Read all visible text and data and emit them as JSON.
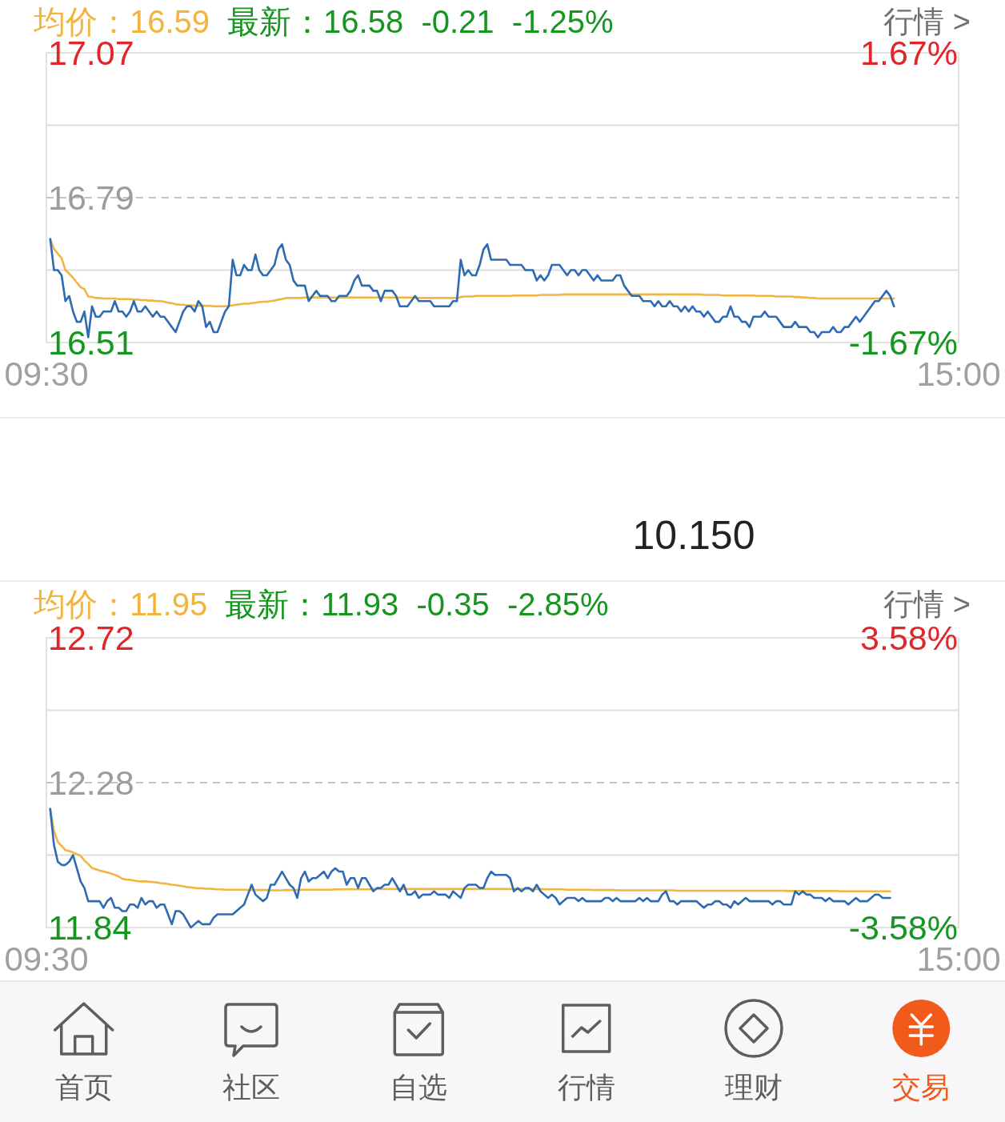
{
  "chart_data": [
    {
      "type": "line",
      "title": "均价：16.59",
      "subtitle": "最新：16.58  -0.21  -1.25%",
      "annotations": [
        "行情 >"
      ],
      "categories": [
        "09:30",
        null,
        null,
        null,
        null,
        null,
        null,
        null,
        null,
        null,
        null,
        null,
        null,
        null,
        null,
        null,
        null,
        null,
        null,
        null,
        null,
        null,
        null,
        null,
        null,
        null,
        null,
        null,
        null,
        null,
        null,
        null,
        null,
        null,
        null,
        null,
        null,
        null,
        null,
        null,
        null,
        null,
        null,
        null,
        null,
        null,
        null,
        null,
        null,
        null,
        null,
        null,
        null,
        null,
        null,
        null,
        null,
        null,
        null,
        null,
        null,
        null,
        null,
        null,
        null,
        null,
        null,
        null,
        null,
        null,
        null,
        null,
        null,
        null,
        null,
        null,
        null,
        null,
        null,
        null,
        null,
        null,
        null,
        null,
        null,
        null,
        null,
        null,
        null,
        null,
        null,
        null,
        null,
        null,
        null,
        null,
        null,
        null,
        null,
        null,
        null,
        null,
        null,
        null,
        null,
        null,
        null,
        null,
        null,
        null,
        null,
        null,
        null,
        null,
        null,
        null,
        null,
        null,
        null,
        null,
        null,
        null,
        null,
        null,
        null,
        null,
        null,
        null,
        null,
        null,
        null,
        null,
        null,
        null,
        null,
        null,
        null,
        null,
        null,
        null,
        null,
        null,
        null,
        null,
        null,
        null,
        null,
        null,
        null,
        null,
        null,
        null,
        null,
        null,
        null,
        null,
        null,
        null,
        null,
        null,
        null,
        null,
        null,
        null,
        null,
        null,
        null,
        null,
        null,
        null,
        null,
        null,
        null,
        null,
        null,
        null,
        null,
        null,
        null,
        null,
        null,
        null,
        null,
        null,
        null,
        null,
        null,
        null,
        null,
        null,
        null,
        null,
        null,
        null,
        null,
        null,
        null,
        null,
        null,
        null,
        null,
        null,
        null,
        null,
        null,
        null,
        null,
        null,
        null,
        null,
        null,
        null,
        null,
        null,
        null,
        null,
        null,
        null,
        null,
        null,
        null,
        null,
        null,
        null,
        null,
        null,
        null,
        null,
        null,
        null,
        null,
        null,
        null,
        null,
        null,
        null,
        null,
        null,
        null,
        null,
        "15:00"
      ],
      "ylim": [
        16.51,
        17.07
      ],
      "yticks": [
        17.07,
        {
          "value": 16.93,
          "label": null
        },
        16.79,
        {
          "value": 16.65,
          "label": null
        },
        16.51
      ],
      "y2lim": [
        -1.67,
        1.67
      ],
      "y2ticks": [
        {
          "value": 1.67,
          "label": "1.67%"
        },
        {
          "value": -1.67,
          "label": "-1.67%"
        }
      ],
      "grid": "y",
      "ref_lines": [
        {
          "axis": "y",
          "value": 16.79,
          "color": "#c4c4c4",
          "line_style": "dashed"
        }
      ],
      "series": [
        {
          "color": "#f2b540",
          "values": [
            null,
            16.71,
            16.691,
            16.682,
            16.673,
            16.65,
            16.643,
            16.635,
            16.626,
            16.617,
            16.613,
            16.599,
            16.598,
            16.596,
            16.596,
            16.595,
            16.595,
            16.595,
            16.595,
            16.594,
            16.594,
            16.594,
            16.594,
            16.593,
            16.593,
            16.592,
            16.592,
            16.591,
            16.591,
            16.59,
            16.59,
            16.589,
            16.587,
            16.586,
            16.584,
            16.583,
            16.583,
            16.582,
            16.582,
            16.581,
            16.581,
            16.581,
            16.581,
            16.581,
            16.58,
            16.58,
            16.58,
            16.58,
            16.581,
            16.582,
            16.583,
            16.584,
            16.585,
            16.585,
            16.586,
            16.587,
            16.588,
            16.589,
            16.589,
            16.59,
            16.591,
            16.593,
            16.594,
            16.596,
            16.596,
            16.596,
            16.596,
            16.596,
            16.597,
            16.597,
            16.597,
            16.597,
            16.597,
            16.597,
            16.597,
            16.597,
            16.597,
            16.597,
            16.597,
            16.597,
            16.597,
            16.597,
            16.597,
            16.597,
            16.597,
            16.597,
            16.597,
            16.597,
            16.597,
            16.597,
            16.597,
            16.597,
            16.597,
            16.597,
            16.597,
            16.597,
            16.597,
            16.597,
            16.596,
            16.596,
            16.596,
            16.596,
            16.596,
            16.596,
            16.596,
            16.596,
            16.596,
            16.596,
            16.596,
            16.598,
            16.599,
            16.599,
            16.599,
            16.6,
            16.6,
            16.6,
            16.6,
            16.6,
            16.6,
            16.6,
            16.6,
            16.6,
            16.6,
            16.601,
            16.601,
            16.601,
            16.601,
            16.601,
            16.601,
            16.601,
            16.602,
            16.602,
            16.602,
            16.602,
            16.602,
            16.602,
            16.603,
            16.603,
            16.603,
            16.603,
            16.603,
            16.603,
            16.603,
            16.603,
            16.603,
            16.603,
            16.603,
            16.603,
            16.603,
            16.603,
            16.603,
            16.603,
            16.603,
            16.603,
            16.603,
            16.603,
            16.603,
            16.603,
            16.603,
            16.603,
            16.603,
            16.603,
            16.603,
            16.603,
            16.603,
            16.603,
            16.603,
            16.603,
            16.603,
            16.603,
            16.603,
            16.603,
            16.603,
            16.602,
            16.602,
            16.602,
            16.602,
            16.602,
            16.601,
            16.601,
            16.601,
            16.601,
            16.601,
            16.601,
            16.601,
            16.601,
            16.601,
            16.6,
            16.6,
            16.6,
            16.6,
            16.6,
            16.599,
            16.599,
            16.599,
            16.599,
            16.599,
            16.598,
            16.598,
            16.597,
            16.597,
            16.596,
            16.596,
            16.595,
            16.595,
            16.595,
            16.595,
            16.595,
            16.595,
            16.595,
            16.595,
            16.595,
            16.595,
            16.595,
            16.595,
            16.595,
            16.595,
            16.595,
            16.595,
            16.595,
            16.595,
            16.595,
            16.595,
            16.595,
            null,
            null,
            null,
            null,
            null,
            null,
            null,
            null,
            null,
            null,
            null,
            null,
            null,
            null,
            null,
            null,
            null
          ]
        },
        {
          "color": "#2e6bb3",
          "values": [
            null,
            16.71,
            16.65,
            16.65,
            16.64,
            16.59,
            16.6,
            16.57,
            16.55,
            16.55,
            16.57,
            16.52,
            16.58,
            16.56,
            16.56,
            16.57,
            16.57,
            16.57,
            16.59,
            16.57,
            16.57,
            16.56,
            16.57,
            16.59,
            16.57,
            16.57,
            16.58,
            16.57,
            16.56,
            16.57,
            16.56,
            16.56,
            16.55,
            16.54,
            16.53,
            16.55,
            16.57,
            16.58,
            16.58,
            16.57,
            16.59,
            16.58,
            16.54,
            16.55,
            16.53,
            16.53,
            16.55,
            16.57,
            16.58,
            16.67,
            16.64,
            16.64,
            16.66,
            16.65,
            16.65,
            16.68,
            16.65,
            16.64,
            16.64,
            16.65,
            16.66,
            16.69,
            16.7,
            16.67,
            16.66,
            16.63,
            16.62,
            16.62,
            16.62,
            16.59,
            16.6,
            16.61,
            16.6,
            16.6,
            16.6,
            16.59,
            16.59,
            16.6,
            16.6,
            16.6,
            16.61,
            16.63,
            16.64,
            16.62,
            16.62,
            16.62,
            16.61,
            16.61,
            16.59,
            16.61,
            16.61,
            16.61,
            16.6,
            16.58,
            16.58,
            16.58,
            16.59,
            16.6,
            16.59,
            16.59,
            16.59,
            16.59,
            16.58,
            16.58,
            16.58,
            16.58,
            16.58,
            16.59,
            16.59,
            16.67,
            16.64,
            16.65,
            16.64,
            16.64,
            16.66,
            16.69,
            16.7,
            16.67,
            16.67,
            16.67,
            16.67,
            16.67,
            16.66,
            16.66,
            16.66,
            16.66,
            16.65,
            16.65,
            16.65,
            16.63,
            16.64,
            16.63,
            16.64,
            16.66,
            16.66,
            16.66,
            16.65,
            16.64,
            16.65,
            16.65,
            16.64,
            16.65,
            16.65,
            16.64,
            16.63,
            16.64,
            16.63,
            16.63,
            16.63,
            16.63,
            16.64,
            16.64,
            16.62,
            16.61,
            16.6,
            16.6,
            16.6,
            16.59,
            16.59,
            16.59,
            16.58,
            16.59,
            16.58,
            16.58,
            16.59,
            16.58,
            16.58,
            16.57,
            16.58,
            16.57,
            16.58,
            16.57,
            16.57,
            16.56,
            16.57,
            16.56,
            16.55,
            16.55,
            16.56,
            16.56,
            16.58,
            16.56,
            16.56,
            16.55,
            16.55,
            16.54,
            16.56,
            16.56,
            16.56,
            16.57,
            16.56,
            16.56,
            16.56,
            16.55,
            16.54,
            16.54,
            16.54,
            16.55,
            16.54,
            16.54,
            16.54,
            16.53,
            16.53,
            16.52,
            16.53,
            16.53,
            16.53,
            16.54,
            16.53,
            16.53,
            16.54,
            16.54,
            16.55,
            16.56,
            16.55,
            16.56,
            16.57,
            16.58,
            16.59,
            16.59,
            16.6,
            16.61,
            16.6,
            16.58,
            null,
            null,
            null,
            null,
            null,
            null,
            null,
            null,
            null,
            null,
            null,
            null,
            null,
            null,
            null,
            null,
            null
          ]
        }
      ]
    },
    {
      "type": "other",
      "annotations": [
        "10.150"
      ]
    },
    {
      "type": "line",
      "title": "均价：11.95",
      "subtitle": "最新：11.93  -0.35  -2.85%",
      "annotations": [
        "行情 >"
      ],
      "categories": [
        "09:30",
        null,
        null,
        null,
        null,
        null,
        null,
        null,
        null,
        null,
        null,
        null,
        null,
        null,
        null,
        null,
        null,
        null,
        null,
        null,
        null,
        null,
        null,
        null,
        null,
        null,
        null,
        null,
        null,
        null,
        null,
        null,
        null,
        null,
        null,
        null,
        null,
        null,
        null,
        null,
        null,
        null,
        null,
        null,
        null,
        null,
        null,
        null,
        null,
        null,
        null,
        null,
        null,
        null,
        null,
        null,
        null,
        null,
        null,
        null,
        null,
        null,
        null,
        null,
        null,
        null,
        null,
        null,
        null,
        null,
        null,
        null,
        null,
        null,
        null,
        null,
        null,
        null,
        null,
        null,
        null,
        null,
        null,
        null,
        null,
        null,
        null,
        null,
        null,
        null,
        null,
        null,
        null,
        null,
        null,
        null,
        null,
        null,
        null,
        null,
        null,
        null,
        null,
        null,
        null,
        null,
        null,
        null,
        null,
        null,
        null,
        null,
        null,
        null,
        null,
        null,
        null,
        null,
        null,
        null,
        null,
        null,
        null,
        null,
        null,
        null,
        null,
        null,
        null,
        null,
        null,
        null,
        null,
        null,
        null,
        null,
        null,
        null,
        null,
        null,
        null,
        null,
        null,
        null,
        null,
        null,
        null,
        null,
        null,
        null,
        null,
        null,
        null,
        null,
        null,
        null,
        null,
        null,
        null,
        null,
        null,
        null,
        null,
        null,
        null,
        null,
        null,
        null,
        null,
        null,
        null,
        null,
        null,
        null,
        null,
        null,
        null,
        null,
        null,
        null,
        null,
        null,
        null,
        null,
        null,
        null,
        null,
        null,
        null,
        null,
        null,
        null,
        null,
        null,
        null,
        null,
        null,
        null,
        null,
        null,
        null,
        null,
        null,
        null,
        null,
        null,
        null,
        null,
        null,
        null,
        null,
        null,
        null,
        null,
        null,
        null,
        null,
        null,
        null,
        null,
        null,
        null,
        null,
        null,
        null,
        null,
        null,
        null,
        null,
        null,
        null,
        null,
        null,
        null,
        null,
        null,
        null,
        null,
        null,
        null,
        "15:00"
      ],
      "ylim": [
        11.84,
        12.72
      ],
      "yticks": [
        12.72,
        {
          "value": 12.5,
          "label": null
        },
        12.28,
        {
          "value": 12.06,
          "label": null
        },
        11.84
      ],
      "y2lim": [
        -3.58,
        3.58
      ],
      "y2ticks": [
        {
          "value": 3.58,
          "label": "3.58%"
        },
        {
          "value": -3.58,
          "label": "-3.58%"
        }
      ],
      "grid": "y",
      "ref_lines": [
        {
          "axis": "y",
          "value": 12.28,
          "color": "#c4c4c4",
          "line_style": "dashed"
        }
      ],
      "series": [
        {
          "color": "#f2b540",
          "values": [
            null,
            12.2,
            12.133,
            12.1,
            12.088,
            12.075,
            12.072,
            12.068,
            12.063,
            12.058,
            12.044,
            12.033,
            12.021,
            12.017,
            12.013,
            12.01,
            12.007,
            12.004,
            12.0,
            11.995,
            11.988,
            11.986,
            11.985,
            11.983,
            11.981,
            11.98,
            11.98,
            11.979,
            11.978,
            11.977,
            11.975,
            11.974,
            11.972,
            11.97,
            11.969,
            11.967,
            11.965,
            11.963,
            11.962,
            11.96,
            11.959,
            11.959,
            11.958,
            11.958,
            11.957,
            11.956,
            11.956,
            11.955,
            11.955,
            11.955,
            11.955,
            11.955,
            11.955,
            11.954,
            11.954,
            11.954,
            11.954,
            11.954,
            11.954,
            11.953,
            11.953,
            11.953,
            11.953,
            11.954,
            11.954,
            11.954,
            11.954,
            11.955,
            11.955,
            11.955,
            11.955,
            11.955,
            11.955,
            11.955,
            11.955,
            11.955,
            11.956,
            11.956,
            11.956,
            11.956,
            11.956,
            11.956,
            11.956,
            11.956,
            11.956,
            11.956,
            11.957,
            11.957,
            11.957,
            11.957,
            11.957,
            11.957,
            11.957,
            11.957,
            11.957,
            11.957,
            11.957,
            11.957,
            11.957,
            11.957,
            11.957,
            11.957,
            11.957,
            11.957,
            11.957,
            11.957,
            11.957,
            11.957,
            11.957,
            11.957,
            11.957,
            11.957,
            11.957,
            11.957,
            11.957,
            11.957,
            11.957,
            11.957,
            11.957,
            11.957,
            11.957,
            11.957,
            11.957,
            11.957,
            11.957,
            11.957,
            11.957,
            11.957,
            11.957,
            11.957,
            11.957,
            11.956,
            11.956,
            11.956,
            11.956,
            11.956,
            11.956,
            11.955,
            11.955,
            11.955,
            11.955,
            11.955,
            11.955,
            11.955,
            11.954,
            11.954,
            11.954,
            11.954,
            11.954,
            11.954,
            11.953,
            11.953,
            11.953,
            11.953,
            11.953,
            11.953,
            11.953,
            11.953,
            11.953,
            11.953,
            11.953,
            11.953,
            11.953,
            11.953,
            11.953,
            11.953,
            11.952,
            11.952,
            11.952,
            11.952,
            11.952,
            11.952,
            11.952,
            11.952,
            11.952,
            11.952,
            11.952,
            11.952,
            11.952,
            11.952,
            11.952,
            11.952,
            11.952,
            11.952,
            11.952,
            11.952,
            11.952,
            11.952,
            11.952,
            11.952,
            11.952,
            11.952,
            11.952,
            11.952,
            11.952,
            11.951,
            11.951,
            11.951,
            11.951,
            11.951,
            11.951,
            11.951,
            11.951,
            11.951,
            11.951,
            11.951,
            11.951,
            11.951,
            11.951,
            11.95,
            11.95,
            11.95,
            11.95,
            11.95,
            11.95,
            11.95,
            11.95,
            11.95,
            11.95,
            11.95,
            11.95,
            11.95,
            11.95,
            null,
            null,
            null,
            null,
            null,
            null,
            null,
            null,
            null,
            null,
            null,
            null,
            null,
            null,
            null,
            null,
            null,
            null
          ]
        },
        {
          "color": "#2e6bb3",
          "values": [
            null,
            12.2,
            12.09,
            12.04,
            12.03,
            12.03,
            12.04,
            12.06,
            12.02,
            11.98,
            11.96,
            11.92,
            11.92,
            11.92,
            11.92,
            11.9,
            11.92,
            11.93,
            11.9,
            11.9,
            11.89,
            11.89,
            11.91,
            11.91,
            11.9,
            11.93,
            11.91,
            11.92,
            11.92,
            11.9,
            11.91,
            11.91,
            11.88,
            11.85,
            11.89,
            11.89,
            11.88,
            11.86,
            11.84,
            11.85,
            11.86,
            11.85,
            11.85,
            11.85,
            11.87,
            11.88,
            11.88,
            11.88,
            11.88,
            11.88,
            11.89,
            11.9,
            11.91,
            11.94,
            11.97,
            11.94,
            11.93,
            11.92,
            11.93,
            11.97,
            11.97,
            11.99,
            12.01,
            11.99,
            11.97,
            11.96,
            11.93,
            11.99,
            12.01,
            11.98,
            11.99,
            11.99,
            12.0,
            12.01,
            11.99,
            12.01,
            12.02,
            12.01,
            12.01,
            11.97,
            11.99,
            11.99,
            11.96,
            11.99,
            11.99,
            11.97,
            11.95,
            11.96,
            11.96,
            11.97,
            11.97,
            11.99,
            11.97,
            11.95,
            11.97,
            11.94,
            11.94,
            11.95,
            11.93,
            11.94,
            11.94,
            11.94,
            11.95,
            11.94,
            11.94,
            11.94,
            11.93,
            11.95,
            11.94,
            11.93,
            11.96,
            11.97,
            11.97,
            11.97,
            11.96,
            11.96,
            11.99,
            12.01,
            12.0,
            12.0,
            12.0,
            12.0,
            11.99,
            11.95,
            11.96,
            11.95,
            11.96,
            11.96,
            11.95,
            11.97,
            11.95,
            11.94,
            11.93,
            11.94,
            11.93,
            11.91,
            11.92,
            11.93,
            11.93,
            11.93,
            11.92,
            11.93,
            11.92,
            11.92,
            11.92,
            11.92,
            11.92,
            11.93,
            11.93,
            11.92,
            11.93,
            11.92,
            11.92,
            11.92,
            11.92,
            11.92,
            11.93,
            11.92,
            11.93,
            11.92,
            11.92,
            11.92,
            11.94,
            11.95,
            11.92,
            11.92,
            11.91,
            11.92,
            11.92,
            11.92,
            11.92,
            11.92,
            11.91,
            11.9,
            11.91,
            11.91,
            11.92,
            11.92,
            11.91,
            11.91,
            11.9,
            11.92,
            11.91,
            11.92,
            11.93,
            11.92,
            11.92,
            11.92,
            11.92,
            11.92,
            11.92,
            11.91,
            11.92,
            11.92,
            11.91,
            11.91,
            11.91,
            11.95,
            11.94,
            11.95,
            11.94,
            11.94,
            11.93,
            11.93,
            11.93,
            11.92,
            11.93,
            11.92,
            11.92,
            11.92,
            11.92,
            11.91,
            11.92,
            11.93,
            11.92,
            11.92,
            11.92,
            11.93,
            11.94,
            11.94,
            11.93,
            11.93,
            11.93,
            null,
            null,
            null,
            null,
            null,
            null,
            null,
            null,
            null,
            null,
            null,
            null,
            null,
            null,
            null,
            null,
            null,
            null
          ]
        }
      ]
    },
    {
      "type": "other",
      "annotations": [
        "首页",
        "社区",
        "自选",
        "行情",
        "理财",
        "交易"
      ],
      "colors": [
        "#5e5e5e",
        "#5e5e5e",
        "#5e5e5e",
        "#5e5e5e",
        "#5e5e5e",
        "#f25a1c"
      ]
    }
  ]
}
